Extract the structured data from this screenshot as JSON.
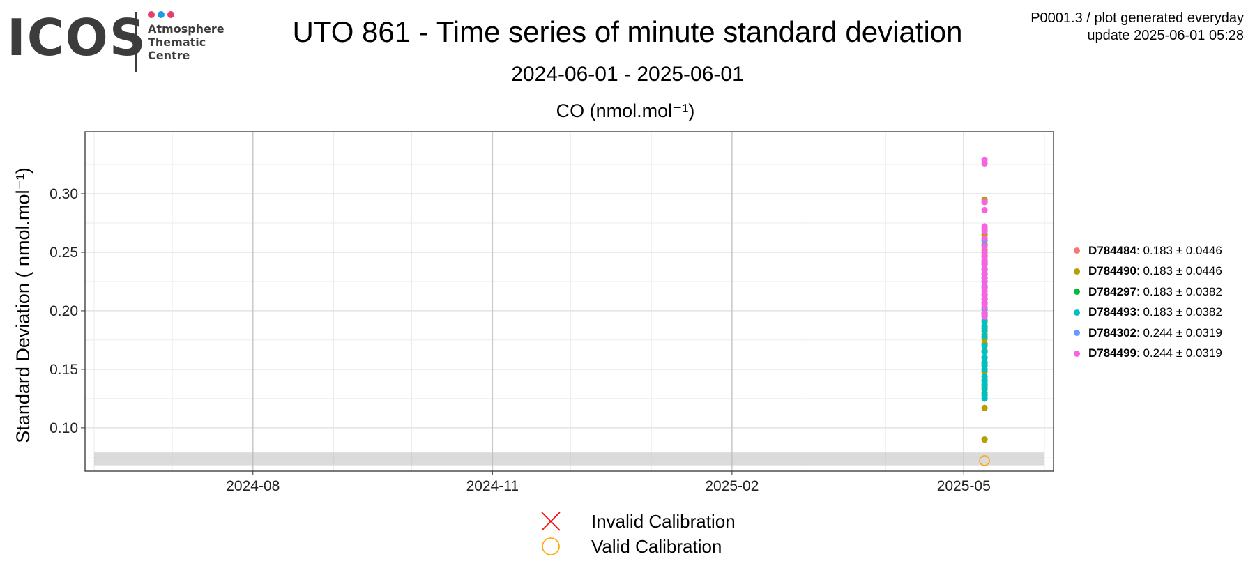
{
  "header": {
    "logo_text": "ICOS",
    "logo_sub": [
      "Atmosphere",
      "Thematic",
      "Centre"
    ],
    "logo_dot_colors": [
      "#e63e6d",
      "#1e9be8",
      "#e63e6d"
    ],
    "title": "UTO 861 - Time series of minute standard deviation",
    "subtitle": "2024-06-01 - 2025-06-01",
    "corner_line1": "P0001.3 / plot generated everyday",
    "corner_line2": "update  2025-06-01 05:28"
  },
  "chart_data": {
    "type": "scatter",
    "title": "CO (nmol.mol⁻¹)",
    "ylabel": "Standard Deviation ( nmol.mol⁻¹)",
    "xlim": [
      "2024-06-01",
      "2025-06-01"
    ],
    "ylim": [
      0.063,
      0.353
    ],
    "x_ticks": [
      "2024-08",
      "2024-11",
      "2025-02",
      "2025-05"
    ],
    "y_ticks": [
      0.1,
      0.15,
      0.2,
      0.25,
      0.3
    ],
    "grid": true,
    "band": [
      0.068,
      0.079
    ],
    "x_point_date": "2025-05-09",
    "series": [
      {
        "name": "D784484",
        "stat": "0.183 ± 0.0446",
        "color": "#f8766d",
        "values": []
      },
      {
        "name": "D784490",
        "stat": "0.183 ± 0.0446",
        "color": "#b79f00",
        "values": [
          0.295,
          0.293,
          0.265,
          0.262,
          0.257,
          0.252,
          0.247,
          0.242,
          0.235,
          0.228,
          0.22,
          0.213,
          0.206,
          0.203,
          0.196,
          0.19,
          0.185,
          0.18,
          0.176,
          0.172,
          0.166,
          0.16,
          0.155,
          0.148,
          0.141,
          0.135,
          0.13,
          0.117,
          0.09
        ]
      },
      {
        "name": "D784297",
        "stat": "0.183 ± 0.0382",
        "color": "#00ba38",
        "values": []
      },
      {
        "name": "D784493",
        "stat": "0.183 ± 0.0382",
        "color": "#00bfc4",
        "values": [
          0.235,
          0.225,
          0.21,
          0.201,
          0.198,
          0.192,
          0.187,
          0.183,
          0.178,
          0.17,
          0.165,
          0.16,
          0.156,
          0.153,
          0.15,
          0.144,
          0.14,
          0.137,
          0.133,
          0.128,
          0.125
        ]
      },
      {
        "name": "D784302",
        "stat": "0.244 ± 0.0319",
        "color": "#619cff",
        "values": [
          0.27,
          0.26,
          0.25,
          0.24,
          0.231,
          0.221,
          0.21
        ]
      },
      {
        "name": "D784499",
        "stat": "0.244 ± 0.0319",
        "color": "#f564e3",
        "values": [
          0.329,
          0.326,
          0.293,
          0.286,
          0.272,
          0.268,
          0.262,
          0.255,
          0.25,
          0.246,
          0.243,
          0.24,
          0.236,
          0.232,
          0.228,
          0.225,
          0.22,
          0.217,
          0.214,
          0.21,
          0.207,
          0.203,
          0.198,
          0.195
        ]
      }
    ],
    "valid_calibration": [
      {
        "x": "2025-05-09",
        "y": 0.072
      }
    ],
    "invalid_calibration": []
  },
  "legend_bottom": [
    {
      "label": "Invalid Calibration",
      "symbol": "cross",
      "color": "#ff0000"
    },
    {
      "label": "Valid Calibration",
      "symbol": "circle",
      "color": "#ffa500"
    }
  ]
}
